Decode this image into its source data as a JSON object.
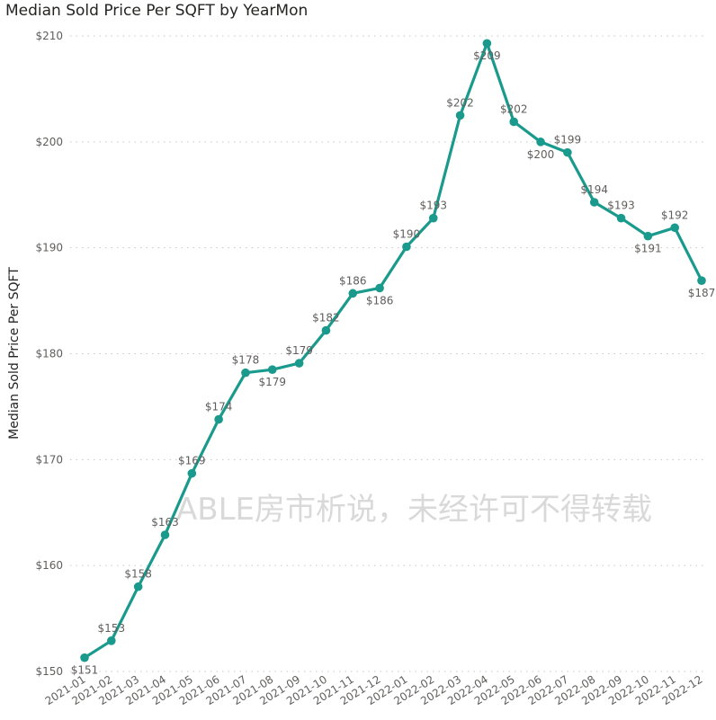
{
  "chart_data": {
    "type": "line",
    "title": "Median Sold Price Per SQFT by YearMon",
    "xlabel": "",
    "ylabel": "Median Sold Price Per SQFT",
    "ylim": [
      150,
      210
    ],
    "yticks": [
      "$150",
      "$160",
      "$170",
      "$180",
      "$190",
      "$200",
      "$210"
    ],
    "grid": true,
    "color": "#1a9a8c",
    "categories": [
      "2021-01",
      "2021-02",
      "2021-03",
      "2021-04",
      "2021-05",
      "2021-06",
      "2021-07",
      "2021-08",
      "2021-09",
      "2021-10",
      "2021-11",
      "2021-12",
      "2022-01",
      "2022-02",
      "2022-03",
      "2022-04",
      "2022-05",
      "2022-06",
      "2022-07",
      "2022-08",
      "2022-09",
      "2022-10",
      "2022-11",
      "2022-12"
    ],
    "values": [
      151.3,
      152.9,
      158.0,
      162.9,
      168.7,
      173.8,
      178.2,
      178.5,
      179.1,
      182.2,
      185.7,
      186.2,
      190.1,
      192.8,
      202.5,
      209.3,
      201.9,
      200.0,
      199.0,
      194.3,
      192.8,
      191.1,
      191.9,
      186.9
    ],
    "data_labels": [
      "$151",
      "$153",
      "$158",
      "$163",
      "$169",
      "$174",
      "$178",
      "$179",
      "$179",
      "$182",
      "$186",
      "$186",
      "$190",
      "$193",
      "$202",
      "$209",
      "$202",
      "$200",
      "$199",
      "$194",
      "$193",
      "$191",
      "$192",
      "$187"
    ],
    "label_pos": [
      "below",
      "above",
      "above",
      "above",
      "above",
      "above",
      "above",
      "below",
      "above",
      "above",
      "above",
      "below",
      "above",
      "above",
      "above",
      "below",
      "above",
      "below",
      "above",
      "above",
      "above",
      "below",
      "above",
      "below"
    ]
  },
  "watermark": "ABLE房市析说，未经许可不得转载"
}
